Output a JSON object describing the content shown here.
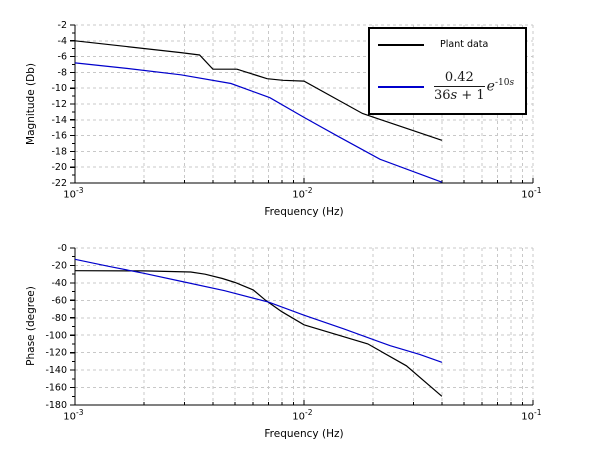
{
  "figure": {
    "background": "#ffffff"
  },
  "colors": {
    "plant": "#000000",
    "model": "#0000CC",
    "grid": "#C8C8C8",
    "axis": "#000000"
  },
  "legend": {
    "entries": [
      {
        "label": "Plant data",
        "color": "#000000"
      },
      {
        "color": "#0000CC",
        "formula": {
          "numerator": "0.42",
          "den_pre": "36",
          "den_var": "s",
          "den_post": " + 1",
          "factor_base": "e",
          "exp_pre": "-10",
          "exp_var": "s"
        }
      }
    ]
  },
  "chart_data": [
    {
      "type": "line",
      "title": "",
      "xlabel": "Frequency (Hz)",
      "ylabel": "Magnitude (Db)",
      "xscale": "log",
      "xlim": [
        0.001,
        0.1
      ],
      "ylim": [
        -22,
        -2
      ],
      "grid": true,
      "legend_position": "upper right",
      "xtick_base": "10",
      "xtick_exponents": [
        "-3",
        "-2",
        "-1"
      ],
      "ytick_labels": [
        "-2",
        "-4",
        "-6",
        "-8",
        "-10",
        "-12",
        "-14",
        "-16",
        "-18",
        "-20",
        "-22"
      ],
      "series": [
        {
          "name": "Plant data",
          "color": "#000000",
          "points": [
            [
              0.001,
              -4.0
            ],
            [
              0.0029,
              -5.5
            ],
            [
              0.0035,
              -5.8
            ],
            [
              0.004,
              -7.6
            ],
            [
              0.0051,
              -7.6
            ],
            [
              0.0069,
              -8.8
            ],
            [
              0.0081,
              -9.0
            ],
            [
              0.01,
              -9.1
            ],
            [
              0.018,
              -13.2
            ],
            [
              0.04,
              -16.6
            ]
          ]
        },
        {
          "name": "0.42/(36s+1) e^(-10s)",
          "color": "#0000CC",
          "points": [
            [
              0.001,
              -6.8
            ],
            [
              0.0017,
              -7.5
            ],
            [
              0.0029,
              -8.3
            ],
            [
              0.0048,
              -9.4
            ],
            [
              0.0071,
              -11.2
            ],
            [
              0.01,
              -13.7
            ],
            [
              0.0143,
              -16.2
            ],
            [
              0.0215,
              -19.0
            ],
            [
              0.04,
              -21.9
            ]
          ]
        }
      ]
    },
    {
      "type": "line",
      "title": "",
      "xlabel": "Frequency (Hz)",
      "ylabel": "Phase (degree)",
      "xscale": "log",
      "xlim": [
        0.001,
        0.1
      ],
      "ylim": [
        -180,
        0
      ],
      "grid": true,
      "xtick_base": "10",
      "xtick_exponents": [
        "-3",
        "-2",
        "-1"
      ],
      "ytick_labels": [
        "-0",
        "-20",
        "-40",
        "-60",
        "-80",
        "-100",
        "-120",
        "-140",
        "-160",
        "-180"
      ],
      "series": [
        {
          "name": "Plant data",
          "color": "#000000",
          "points": [
            [
              0.001,
              -26
            ],
            [
              0.002,
              -26.3
            ],
            [
              0.0032,
              -27.5
            ],
            [
              0.0037,
              -30
            ],
            [
              0.0044,
              -35
            ],
            [
              0.005,
              -39.5
            ],
            [
              0.006,
              -48
            ],
            [
              0.0068,
              -60
            ],
            [
              0.008,
              -73
            ],
            [
              0.01,
              -88
            ],
            [
              0.019,
              -110
            ],
            [
              0.028,
              -135
            ],
            [
              0.04,
              -170
            ]
          ]
        },
        {
          "name": "0.42/(36s+1) e^(-10s)",
          "color": "#0000CC",
          "points": [
            [
              0.001,
              -13
            ],
            [
              0.0014,
              -21
            ],
            [
              0.002,
              -29
            ],
            [
              0.003,
              -39
            ],
            [
              0.0045,
              -49
            ],
            [
              0.007,
              -62
            ],
            [
              0.01,
              -77
            ],
            [
              0.015,
              -93
            ],
            [
              0.0238,
              -112
            ],
            [
              0.032,
              -122
            ],
            [
              0.04,
              -131
            ]
          ]
        }
      ]
    }
  ]
}
